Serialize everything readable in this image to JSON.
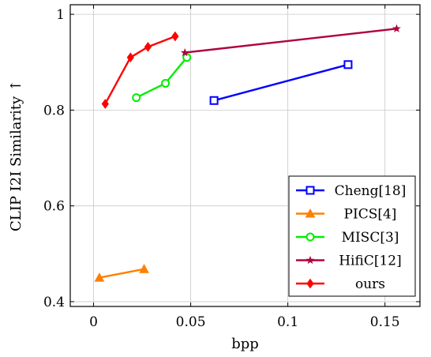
{
  "chart_data": {
    "type": "line",
    "xlabel": "bpp",
    "ylabel": "CLIP I2I Similarity ↑",
    "xlim": [
      -0.012,
      0.168
    ],
    "ylim": [
      0.39,
      1.02
    ],
    "xticks": [
      0,
      0.05,
      0.1,
      0.15
    ],
    "xtick_labels": [
      "0",
      "0.05",
      "0.1",
      "0.15"
    ],
    "yticks": [
      0.4,
      0.6,
      0.8,
      1
    ],
    "ytick_labels": [
      "0.4",
      "0.6",
      "0.8",
      "1"
    ],
    "grid": true,
    "legend_position": "bottom-right",
    "series": [
      {
        "name": "Cheng[18]",
        "color": "#0000ff",
        "marker": "square",
        "x": [
          0.062,
          0.131
        ],
        "y": [
          0.82,
          0.895
        ]
      },
      {
        "name": "PICS[4]",
        "color": "#ff8000",
        "marker": "triangle",
        "x": [
          0.003,
          0.026
        ],
        "y": [
          0.45,
          0.468
        ]
      },
      {
        "name": "MISC[3]",
        "color": "#00ee00",
        "marker": "circle",
        "x": [
          0.022,
          0.037,
          0.048
        ],
        "y": [
          0.826,
          0.856,
          0.91
        ]
      },
      {
        "name": "HifiC[12]",
        "color": "#b00040",
        "marker": "star",
        "x": [
          0.047,
          0.156
        ],
        "y": [
          0.92,
          0.97
        ]
      },
      {
        "name": "ours",
        "color": "#ff0000",
        "marker": "diamond",
        "x": [
          0.006,
          0.019,
          0.028,
          0.042
        ],
        "y": [
          0.813,
          0.91,
          0.932,
          0.954
        ]
      }
    ]
  }
}
